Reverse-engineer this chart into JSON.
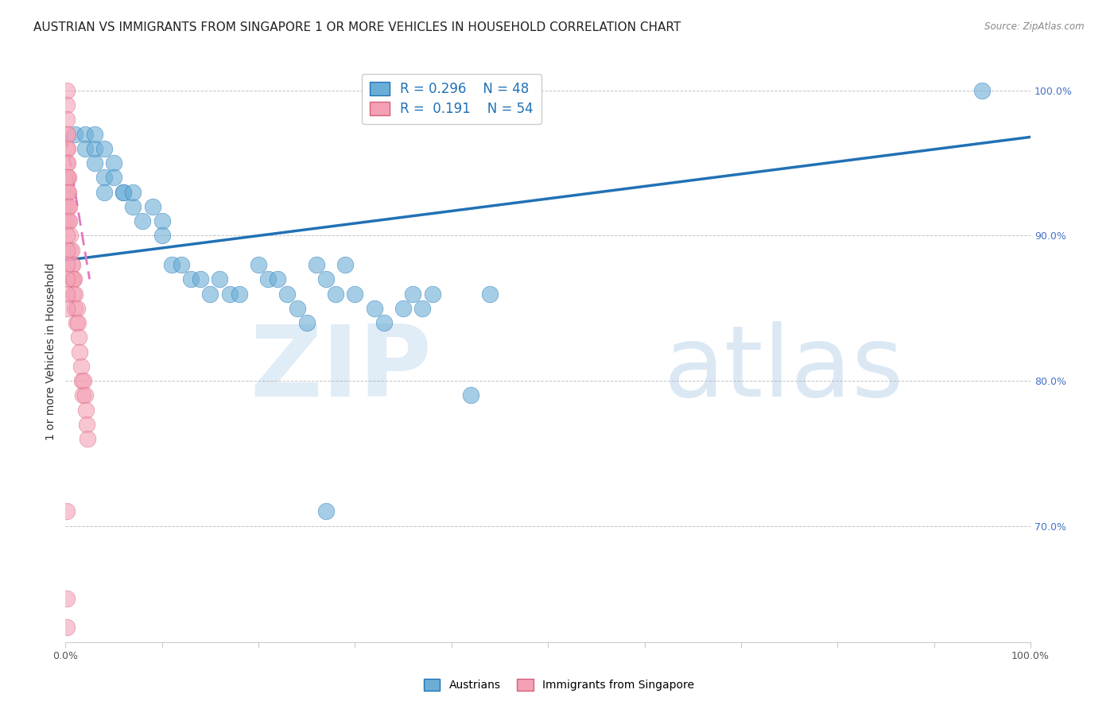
{
  "title": "AUSTRIAN VS IMMIGRANTS FROM SINGAPORE 1 OR MORE VEHICLES IN HOUSEHOLD CORRELATION CHART",
  "source": "Source: ZipAtlas.com",
  "ylabel": "1 or more Vehicles in Household",
  "xlim": [
    0.0,
    1.0
  ],
  "ylim": [
    0.62,
    1.02
  ],
  "color_austrians": "#6aaed6",
  "color_singapore": "#f4a0b5",
  "color_line_austrians": "#2171b5",
  "color_line_singapore": "#e377c2",
  "color_edge_singapore": "#d4607a",
  "watermark_zip": "ZIP",
  "watermark_atlas": "atlas",
  "legend_R_austrians": "R = 0.296",
  "legend_N_austrians": "N = 48",
  "legend_R_singapore": "R =  0.191",
  "legend_N_singapore": "N = 54",
  "title_fontsize": 11,
  "axis_label_fontsize": 10,
  "tick_fontsize": 9,
  "legend_fontsize": 12,
  "austrians_x": [
    0.01,
    0.02,
    0.02,
    0.03,
    0.03,
    0.03,
    0.04,
    0.04,
    0.04,
    0.05,
    0.05,
    0.06,
    0.06,
    0.07,
    0.07,
    0.08,
    0.09,
    0.1,
    0.1,
    0.11,
    0.12,
    0.13,
    0.14,
    0.15,
    0.16,
    0.17,
    0.18,
    0.2,
    0.21,
    0.22,
    0.23,
    0.24,
    0.25,
    0.26,
    0.27,
    0.28,
    0.29,
    0.3,
    0.32,
    0.33,
    0.35,
    0.36,
    0.37,
    0.38,
    0.42,
    0.44,
    0.27,
    0.95
  ],
  "austrians_y": [
    0.97,
    0.97,
    0.96,
    0.96,
    0.97,
    0.95,
    0.96,
    0.94,
    0.93,
    0.95,
    0.94,
    0.93,
    0.93,
    0.92,
    0.93,
    0.91,
    0.92,
    0.91,
    0.9,
    0.88,
    0.88,
    0.87,
    0.87,
    0.86,
    0.87,
    0.86,
    0.86,
    0.88,
    0.87,
    0.87,
    0.86,
    0.85,
    0.84,
    0.88,
    0.87,
    0.86,
    0.88,
    0.86,
    0.85,
    0.84,
    0.85,
    0.86,
    0.85,
    0.86,
    0.79,
    0.86,
    0.71,
    1.0
  ],
  "singapore_x": [
    0.001,
    0.001,
    0.001,
    0.001,
    0.001,
    0.001,
    0.001,
    0.001,
    0.001,
    0.001,
    0.002,
    0.002,
    0.002,
    0.002,
    0.002,
    0.003,
    0.003,
    0.003,
    0.003,
    0.004,
    0.004,
    0.005,
    0.005,
    0.006,
    0.006,
    0.007,
    0.007,
    0.008,
    0.008,
    0.009,
    0.01,
    0.01,
    0.011,
    0.012,
    0.013,
    0.014,
    0.015,
    0.016,
    0.017,
    0.018,
    0.019,
    0.02,
    0.021,
    0.022,
    0.023,
    0.001,
    0.001,
    0.001,
    0.001,
    0.001,
    0.001,
    0.001,
    0.001,
    0.001
  ],
  "singapore_y": [
    1.0,
    0.99,
    0.98,
    0.97,
    0.96,
    0.95,
    0.94,
    0.93,
    0.92,
    0.91,
    0.97,
    0.96,
    0.95,
    0.94,
    0.93,
    0.94,
    0.93,
    0.92,
    0.91,
    0.92,
    0.91,
    0.9,
    0.89,
    0.89,
    0.88,
    0.88,
    0.87,
    0.87,
    0.86,
    0.87,
    0.86,
    0.85,
    0.84,
    0.85,
    0.84,
    0.83,
    0.82,
    0.81,
    0.8,
    0.79,
    0.8,
    0.79,
    0.78,
    0.77,
    0.76,
    0.9,
    0.89,
    0.88,
    0.87,
    0.86,
    0.85,
    0.71,
    0.65,
    0.63
  ],
  "aus_trend_x": [
    0.0,
    1.0
  ],
  "aus_trend_y": [
    0.883,
    0.968
  ],
  "sing_trend_x": [
    0.0,
    0.025
  ],
  "sing_trend_y": [
    0.97,
    0.87
  ],
  "ytick_vals": [
    0.7,
    0.8,
    0.9,
    1.0
  ],
  "ytick_labels": [
    "70.0%",
    "80.0%",
    "90.0%",
    "100.0%"
  ]
}
